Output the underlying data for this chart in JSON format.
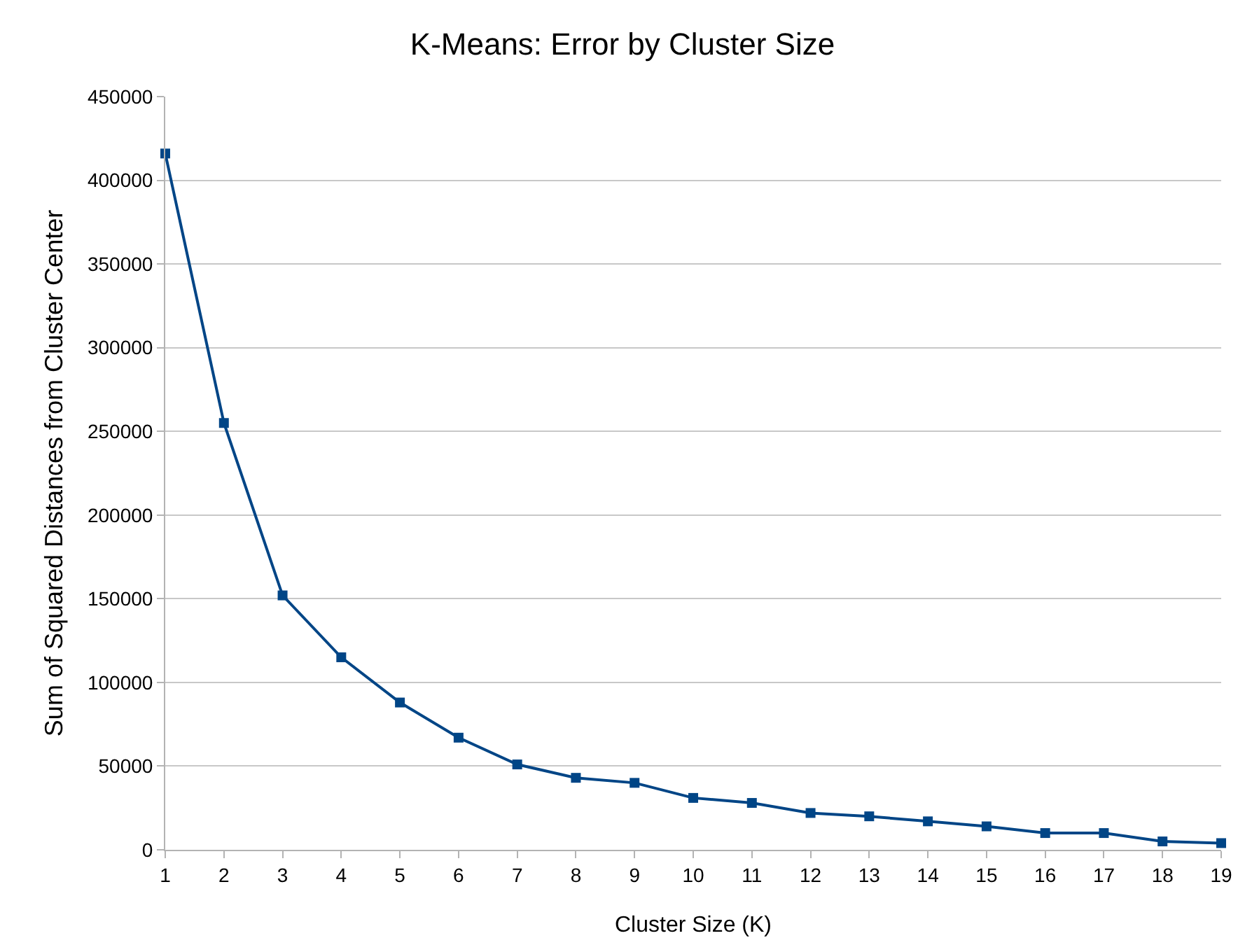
{
  "chart_data": {
    "type": "line",
    "title": "K-Means: Error by Cluster Size",
    "xlabel": "Cluster Size (K)",
    "ylabel": "Sum of Squared Distances from Cluster Center",
    "x": [
      1,
      2,
      3,
      4,
      5,
      6,
      7,
      8,
      9,
      10,
      11,
      12,
      13,
      14,
      15,
      16,
      17,
      18,
      19
    ],
    "series": [
      {
        "color": "#004586",
        "values": [
          416000,
          255000,
          152000,
          115000,
          88000,
          67000,
          51000,
          43000,
          40000,
          31000,
          28000,
          22000,
          20000,
          17000,
          14000,
          10000,
          10000,
          5000,
          4000
        ]
      }
    ],
    "xlim": [
      1,
      19
    ],
    "xticks": [
      1,
      2,
      3,
      4,
      5,
      6,
      7,
      8,
      9,
      10,
      11,
      12,
      13,
      14,
      15,
      16,
      17,
      18,
      19
    ],
    "ylim": [
      0,
      450000
    ],
    "yticks": [
      0,
      50000,
      100000,
      150000,
      200000,
      250000,
      300000,
      350000,
      400000,
      450000
    ],
    "grid": "y",
    "marker": "square",
    "line_style": "solid"
  }
}
